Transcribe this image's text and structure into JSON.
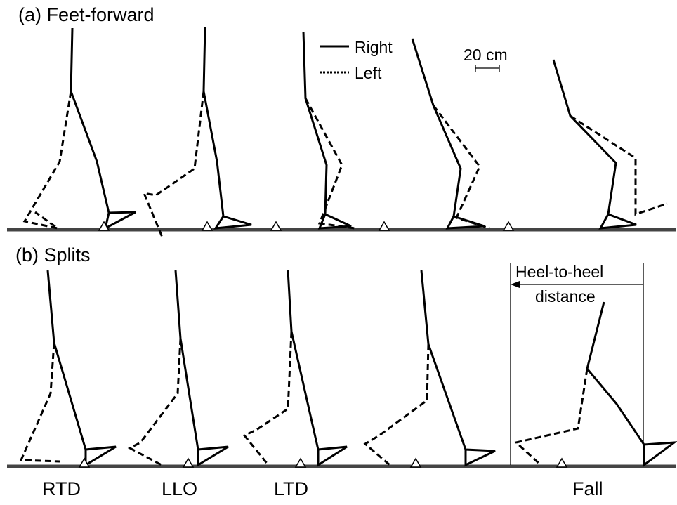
{
  "panels": [
    {
      "label": "(a) Feet-forward"
    },
    {
      "label": "(b) Splits"
    }
  ],
  "legend": {
    "right": "Right",
    "left": "Left"
  },
  "scale_bar": "20 cm",
  "annotation": [
    "Heel-to-heel",
    "distance"
  ],
  "phases": [
    "RTD",
    "LLO",
    "LTD",
    "Fall"
  ]
}
